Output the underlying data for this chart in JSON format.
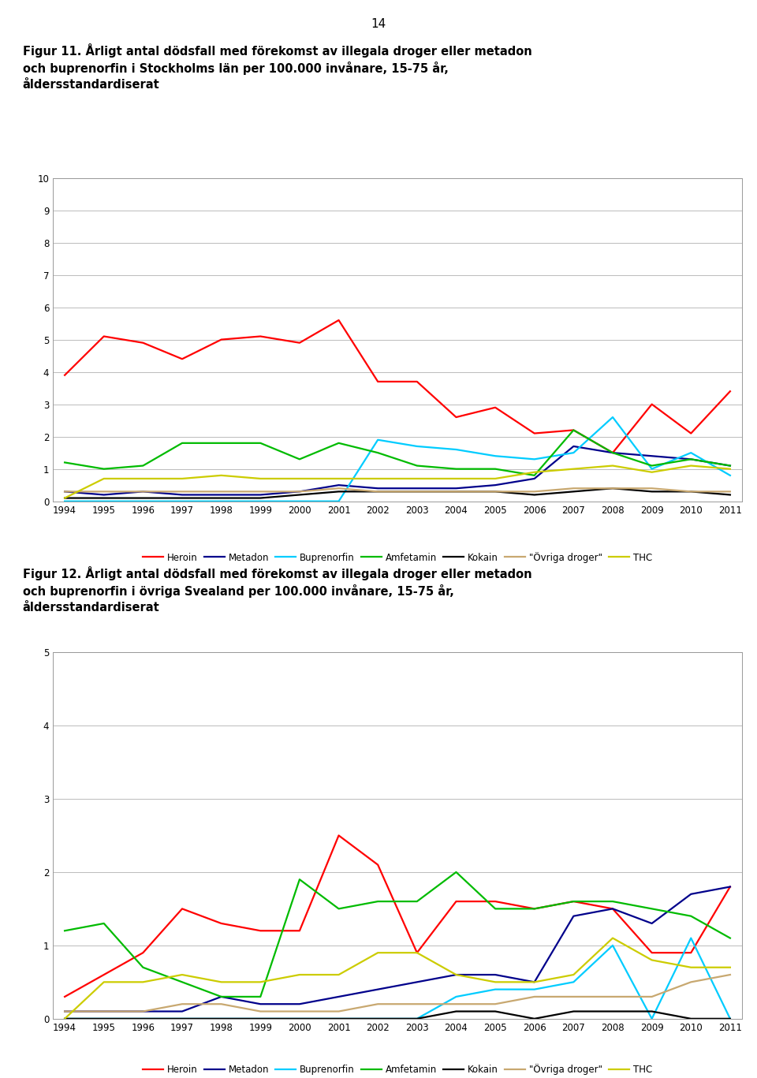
{
  "page_number": "14",
  "fig1_title": "Figur 11. Årligt antal dödsfall med förekomst av illegala droger eller metadon\noch buprenorfin i Stockholms län per 100.000 invånare, 15-75 år,\nåldersstandardiserat",
  "fig2_title": "Figur 12. Årligt antal dödsfall med förekomst av illegala droger eller metadon\noch buprenorfin i övriga Svealand per 100.000 invånare, 15-75 år,\nåldersstandardiserat",
  "years": [
    1994,
    1995,
    1996,
    1997,
    1998,
    1999,
    2000,
    2001,
    2002,
    2003,
    2004,
    2005,
    2006,
    2007,
    2008,
    2009,
    2010,
    2011
  ],
  "fig1": {
    "heroin": [
      3.9,
      5.1,
      4.9,
      4.4,
      5.0,
      5.1,
      4.9,
      5.6,
      3.7,
      3.7,
      2.6,
      2.9,
      2.1,
      2.2,
      1.5,
      3.0,
      2.1,
      3.4
    ],
    "metadon": [
      0.3,
      0.2,
      0.3,
      0.2,
      0.2,
      0.2,
      0.3,
      0.5,
      0.4,
      0.4,
      0.4,
      0.5,
      0.7,
      1.7,
      1.5,
      1.4,
      1.3,
      1.1
    ],
    "buprenorfin": [
      0.0,
      0.0,
      0.0,
      0.0,
      0.0,
      0.0,
      0.0,
      0.0,
      1.9,
      1.7,
      1.6,
      1.4,
      1.3,
      1.5,
      2.6,
      1.0,
      1.5,
      0.8
    ],
    "amfetamin": [
      1.2,
      1.0,
      1.1,
      1.8,
      1.8,
      1.8,
      1.3,
      1.8,
      1.5,
      1.1,
      1.0,
      1.0,
      0.8,
      2.2,
      1.5,
      1.1,
      1.3,
      1.1
    ],
    "kokain": [
      0.1,
      0.1,
      0.1,
      0.1,
      0.1,
      0.1,
      0.2,
      0.3,
      0.3,
      0.3,
      0.3,
      0.3,
      0.2,
      0.3,
      0.4,
      0.3,
      0.3,
      0.2
    ],
    "ovriga": [
      0.3,
      0.3,
      0.3,
      0.3,
      0.3,
      0.3,
      0.3,
      0.4,
      0.3,
      0.3,
      0.3,
      0.3,
      0.3,
      0.4,
      0.4,
      0.4,
      0.3,
      0.3
    ],
    "thc": [
      0.1,
      0.7,
      0.7,
      0.7,
      0.8,
      0.7,
      0.7,
      0.7,
      0.7,
      0.7,
      0.7,
      0.7,
      0.9,
      1.0,
      1.1,
      0.9,
      1.1,
      1.0
    ],
    "ylim": [
      0,
      10
    ],
    "yticks": [
      0,
      1,
      2,
      3,
      4,
      5,
      6,
      7,
      8,
      9,
      10
    ]
  },
  "fig2": {
    "heroin": [
      0.3,
      0.6,
      0.9,
      1.5,
      1.3,
      1.2,
      1.2,
      2.5,
      2.1,
      0.9,
      1.6,
      1.6,
      1.5,
      1.6,
      1.5,
      0.9,
      0.9,
      1.8
    ],
    "metadon": [
      0.1,
      0.1,
      0.1,
      0.1,
      0.3,
      0.2,
      0.2,
      0.3,
      0.4,
      0.5,
      0.6,
      0.6,
      0.5,
      1.4,
      1.5,
      1.3,
      1.7,
      1.8
    ],
    "buprenorfin": [
      0.0,
      0.0,
      0.0,
      0.0,
      0.0,
      0.0,
      0.0,
      0.0,
      0.0,
      0.0,
      0.3,
      0.4,
      0.4,
      0.5,
      1.0,
      0.0,
      1.1,
      0.0
    ],
    "amfetamin": [
      1.2,
      1.3,
      0.7,
      0.5,
      0.3,
      0.3,
      1.9,
      1.5,
      1.6,
      1.6,
      2.0,
      1.5,
      1.5,
      1.6,
      1.6,
      1.5,
      1.4,
      1.1
    ],
    "kokain": [
      0.0,
      0.0,
      0.0,
      0.0,
      0.0,
      0.0,
      0.0,
      0.0,
      0.0,
      0.0,
      0.1,
      0.1,
      0.0,
      0.1,
      0.1,
      0.1,
      0.0,
      0.0
    ],
    "ovriga": [
      0.1,
      0.1,
      0.1,
      0.2,
      0.2,
      0.1,
      0.1,
      0.1,
      0.2,
      0.2,
      0.2,
      0.2,
      0.3,
      0.3,
      0.3,
      0.3,
      0.5,
      0.6
    ],
    "thc": [
      0.0,
      0.5,
      0.5,
      0.6,
      0.5,
      0.5,
      0.6,
      0.6,
      0.9,
      0.9,
      0.6,
      0.5,
      0.5,
      0.6,
      1.1,
      0.8,
      0.7,
      0.7
    ],
    "ylim": [
      0,
      5
    ],
    "yticks": [
      0,
      1,
      2,
      3,
      4,
      5
    ]
  },
  "colors": {
    "heroin": "#FF0000",
    "metadon": "#00008B",
    "buprenorfin": "#00CCFF",
    "amfetamin": "#00BB00",
    "kokain": "#000000",
    "ovriga": "#C8A870",
    "thc": "#CCCC00"
  },
  "line_width": 1.6,
  "background_color": "#FFFFFF",
  "grid_color": "#BBBBBB"
}
